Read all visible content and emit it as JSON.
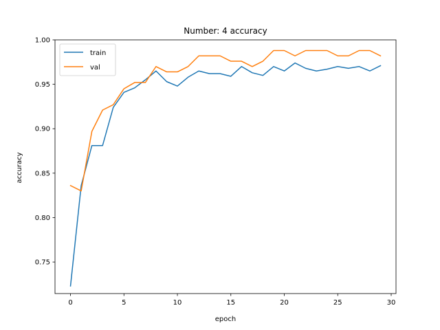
{
  "chart_data": {
    "type": "line",
    "title": "Number: 4 accuracy",
    "xlabel": "epoch",
    "ylabel": "accuracy",
    "xlim": [
      -1.45,
      30.45
    ],
    "ylim": [
      0.7145,
      1.0
    ],
    "x_ticks": [
      0,
      5,
      10,
      15,
      20,
      25,
      30
    ],
    "y_ticks": [
      0.75,
      0.8,
      0.85,
      0.9,
      0.95,
      1.0
    ],
    "x_tick_labels": [
      "0",
      "5",
      "10",
      "15",
      "20",
      "25",
      "30"
    ],
    "y_tick_labels": [
      "0.75",
      "0.80",
      "0.85",
      "0.90",
      "0.95",
      "1.00"
    ],
    "grid": false,
    "legend_position": "upper-left",
    "x": [
      0,
      1,
      2,
      3,
      4,
      5,
      6,
      7,
      8,
      9,
      10,
      11,
      12,
      13,
      14,
      15,
      16,
      17,
      18,
      19,
      20,
      21,
      22,
      23,
      24,
      25,
      26,
      27,
      28,
      29
    ],
    "series": [
      {
        "name": "train",
        "color": "#1f77b4",
        "values": [
          0.723,
          0.836,
          0.881,
          0.881,
          0.924,
          0.941,
          0.946,
          0.955,
          0.965,
          0.953,
          0.948,
          0.958,
          0.965,
          0.962,
          0.962,
          0.959,
          0.97,
          0.963,
          0.96,
          0.97,
          0.965,
          0.974,
          0.968,
          0.965,
          0.967,
          0.97,
          0.968,
          0.97,
          0.965,
          0.971
        ]
      },
      {
        "name": "val",
        "color": "#ff7f0e",
        "values": [
          0.836,
          0.83,
          0.897,
          0.921,
          0.927,
          0.945,
          0.952,
          0.952,
          0.97,
          0.964,
          0.964,
          0.97,
          0.982,
          0.982,
          0.982,
          0.976,
          0.976,
          0.97,
          0.976,
          0.988,
          0.988,
          0.982,
          0.988,
          0.988,
          0.988,
          0.982,
          0.982,
          0.988,
          0.988,
          0.982
        ]
      }
    ]
  }
}
